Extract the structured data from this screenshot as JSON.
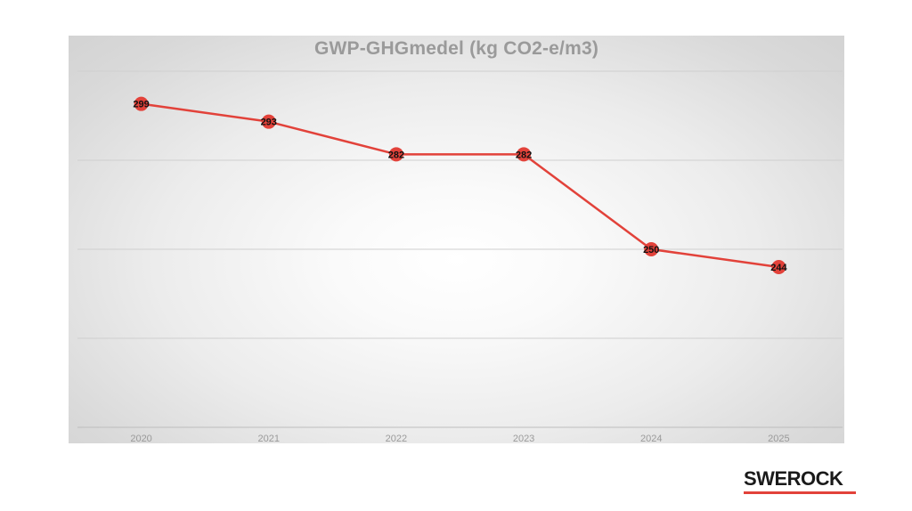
{
  "chart_data": {
    "type": "line",
    "title": "GWP-GHGmedel (kg CO2-e/m3)",
    "categories": [
      "2020",
      "2021",
      "2022",
      "2023",
      "2024",
      "2025"
    ],
    "series": [
      {
        "values": [
          299,
          293,
          282,
          282,
          250,
          244
        ],
        "color": "#e2423a"
      }
    ],
    "data_labels": true,
    "ylim": [
      190,
      310
    ],
    "grid": true,
    "legend": "none"
  },
  "logo": {
    "text": "SWEROCK",
    "bar_color": "#e2423a"
  }
}
